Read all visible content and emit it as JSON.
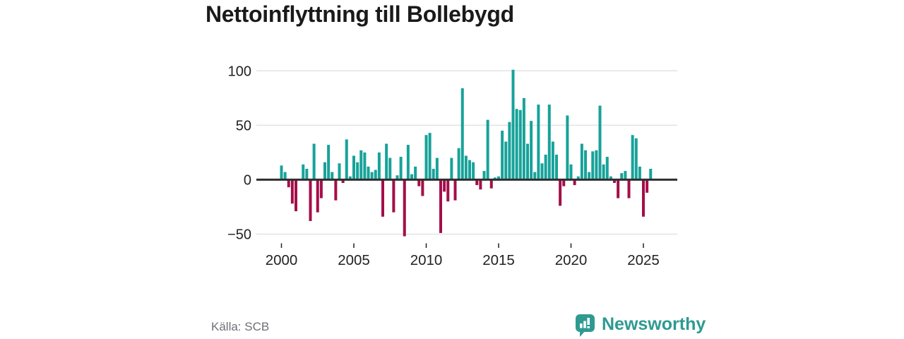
{
  "title": "Nettoinflyttning till Bollebygd",
  "source": "Källa: SCB",
  "logo": {
    "text": "Newsworthy",
    "icon": "speech-bubble-bar-chart-icon",
    "color": "#2E9A92"
  },
  "colors": {
    "positive_bar": "#17A29A",
    "negative_bar": "#A40E49",
    "gridline": "#E3E3E3",
    "zero_line": "#303030",
    "axis_text": "#222222",
    "title_text": "#1A1A1A",
    "source_text": "#6F6F78"
  },
  "chart_data": {
    "type": "bar",
    "title": "Nettoinflyttning till Bollebygd",
    "frequency": "quarterly",
    "start_period": "2000-Q1",
    "end_period": "2025-Q3",
    "ylim": [
      -55,
      105
    ],
    "grid": true,
    "legend": "none",
    "y_ticks": [
      {
        "value": 100,
        "label": "100"
      },
      {
        "value": 50,
        "label": "50"
      },
      {
        "value": 0,
        "label": "0"
      },
      {
        "value": -50,
        "label": "−50"
      }
    ],
    "x_ticks": [
      {
        "year": 2000,
        "label": "2000"
      },
      {
        "year": 2005,
        "label": "2005"
      },
      {
        "year": 2010,
        "label": "2010"
      },
      {
        "year": 2015,
        "label": "2015"
      },
      {
        "year": 2020,
        "label": "2020"
      },
      {
        "year": 2025,
        "label": "2025"
      }
    ],
    "series": [
      {
        "name": "Nettoinflyttning",
        "values": [
          13,
          7,
          -7,
          -22,
          -29,
          0,
          14,
          10,
          -38,
          33,
          -30,
          -17,
          16,
          32,
          7,
          -19,
          15,
          -3,
          37,
          3,
          22,
          16,
          27,
          25,
          12,
          7,
          9,
          25,
          -34,
          33,
          20,
          -30,
          4,
          21,
          -52,
          32,
          5,
          12,
          -6,
          -15,
          41,
          43,
          10,
          20,
          -49,
          -11,
          -20,
          20,
          -19,
          29,
          84,
          22,
          18,
          16,
          -5,
          -9,
          8,
          55,
          -8,
          2,
          3,
          45,
          35,
          53,
          101,
          65,
          64,
          75,
          33,
          54,
          7,
          69,
          15,
          23,
          69,
          35,
          23,
          -24,
          -6,
          59,
          14,
          -5,
          3,
          33,
          27,
          7,
          26,
          27,
          68,
          14,
          21,
          3,
          -3,
          -17,
          6,
          8,
          -17,
          41,
          38,
          12,
          -34,
          -12,
          10
        ]
      }
    ]
  }
}
